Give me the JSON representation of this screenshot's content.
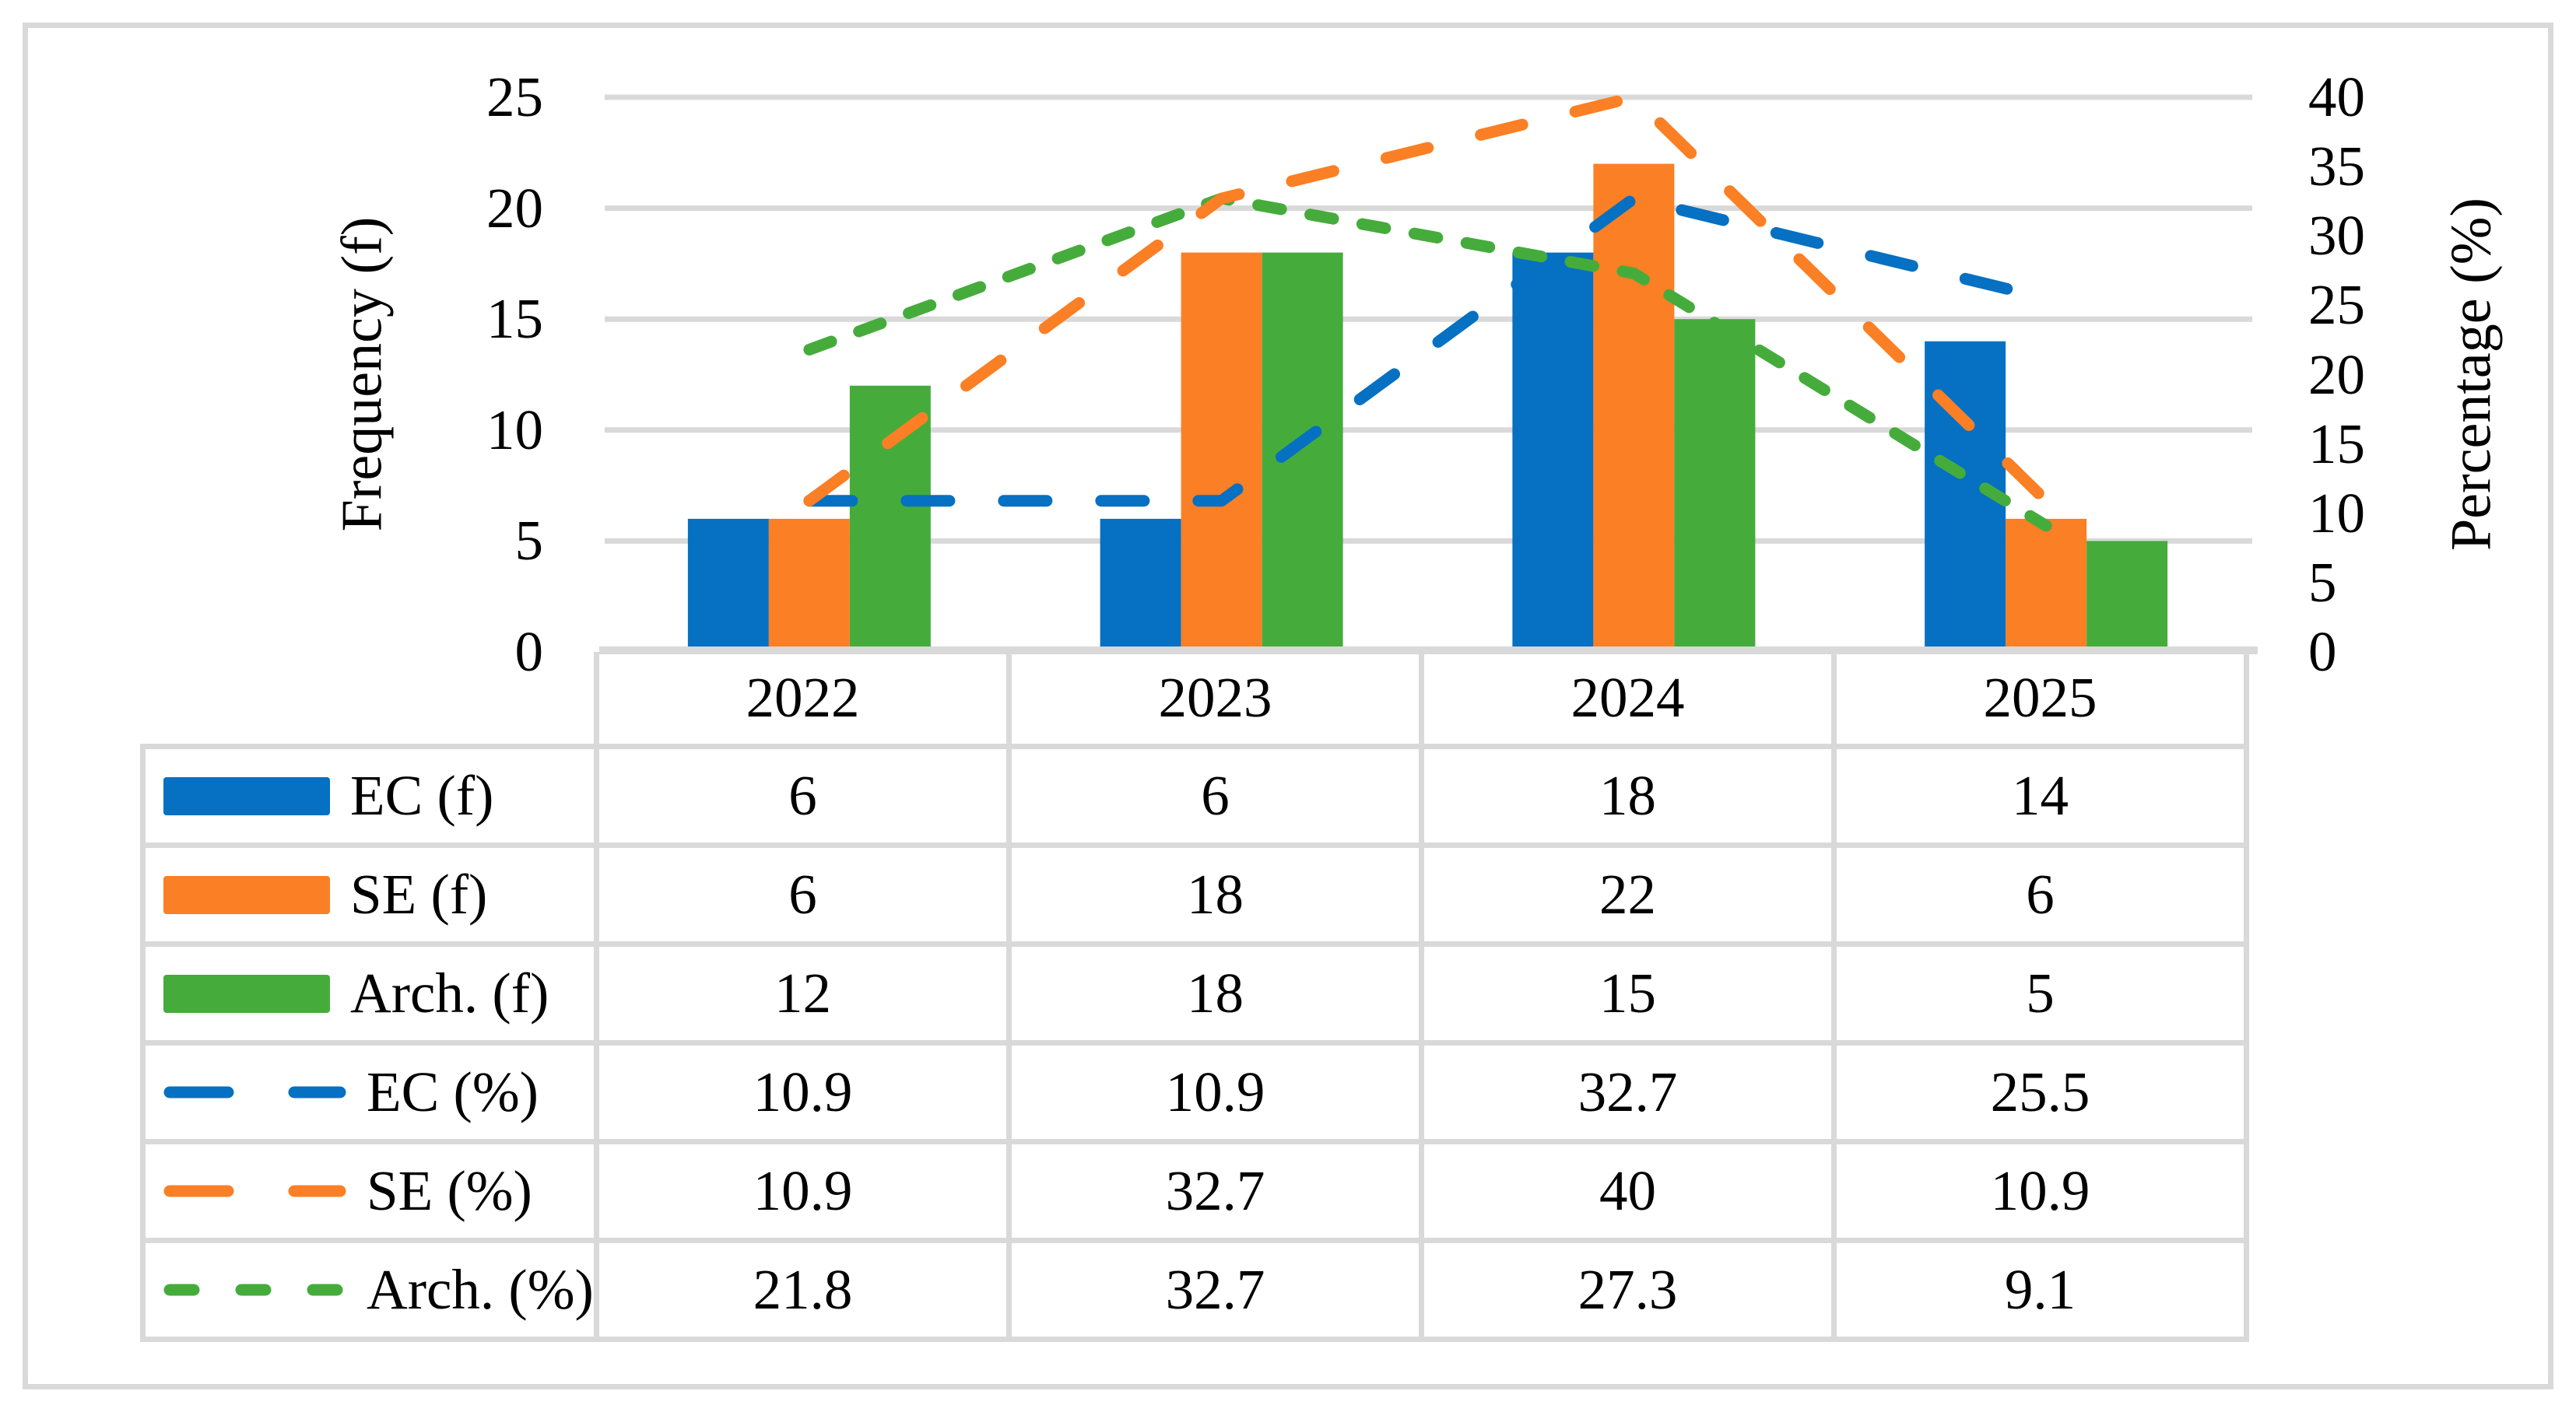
{
  "figure": {
    "kind": "excel-style combo chart with data table",
    "background": "#FFFFFF"
  },
  "chart_data": {
    "type": "bar+line",
    "categories": [
      "2022",
      "2023",
      "2024",
      "2025"
    ],
    "series": [
      {
        "name": "EC (f)",
        "kind": "bar",
        "axis": "left",
        "color": "#0670C2",
        "values": [
          6,
          6,
          18,
          14
        ]
      },
      {
        "name": "SE (f)",
        "kind": "bar",
        "axis": "left",
        "color": "#FB7F24",
        "values": [
          6,
          18,
          22,
          6
        ]
      },
      {
        "name": "Arch. (f)",
        "kind": "bar",
        "axis": "left",
        "color": "#45AC3C",
        "values": [
          12,
          18,
          15,
          5
        ]
      },
      {
        "name": "EC (%)",
        "kind": "line",
        "axis": "right",
        "dash": "long",
        "color": "#0670C2",
        "values": [
          10.9,
          10.9,
          32.7,
          25.5
        ]
      },
      {
        "name": "SE (%)",
        "kind": "line",
        "axis": "right",
        "dash": "long",
        "color": "#FB7F24",
        "values": [
          10.9,
          32.7,
          40,
          10.9
        ]
      },
      {
        "name": "Arch. (%)",
        "kind": "line",
        "axis": "right",
        "dash": "short",
        "color": "#45AC3C",
        "values": [
          21.8,
          32.7,
          27.3,
          9.1
        ]
      }
    ],
    "left_axis": {
      "title": "Frequency (f)",
      "min": 0,
      "max": 25,
      "step": 5,
      "tick_labels": [
        25,
        20,
        15,
        10,
        5,
        0
      ]
    },
    "right_axis": {
      "title": "Percentage (%)",
      "min": 0,
      "max": 40,
      "step": 5,
      "tick_labels": [
        40,
        35,
        30,
        25,
        20,
        15,
        10,
        5,
        0
      ]
    },
    "grid": true,
    "legend_position": "data-table-left-column",
    "colors": {
      "grid": "#D9D9D9",
      "frame": "#D9D9D9",
      "text": "#000000",
      "background": "#FFFFFF"
    }
  }
}
